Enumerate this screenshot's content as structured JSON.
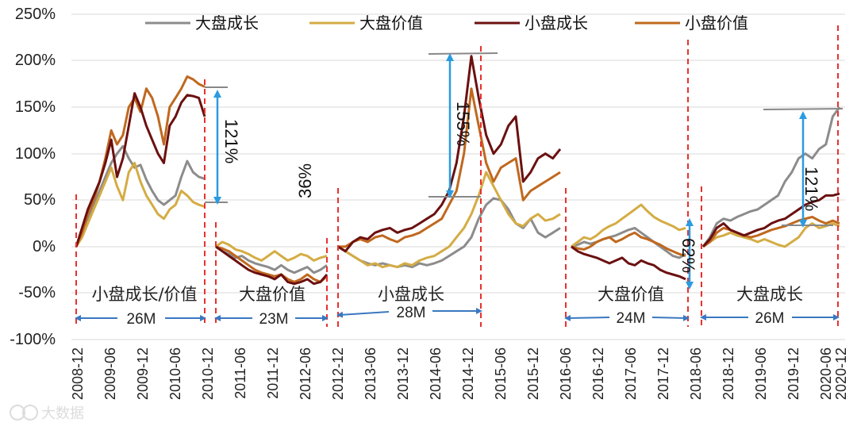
{
  "chart_data": {
    "type": "line",
    "title": "",
    "xlabel": "",
    "ylabel": "",
    "ylim": [
      -100,
      250
    ],
    "yticks": [
      "250%",
      "200%",
      "150%",
      "100%",
      "50%",
      "0%",
      "-50%",
      "-100%"
    ],
    "xticks": [
      "2008-12",
      "2009-06",
      "2009-12",
      "2010-06",
      "2010-12",
      "2011-06",
      "2011-12",
      "2012-06",
      "2012-12",
      "2013-06",
      "2013-12",
      "2014-06",
      "2014-12",
      "2015-06",
      "2015-12",
      "2016-06",
      "2016-12",
      "2017-06",
      "2017-12",
      "2018-06",
      "2018-12",
      "2019-06",
      "2019-12",
      "2020-06",
      "2020-12"
    ],
    "legend_position": "top",
    "series_colors": {
      "large_growth": "#8c8c8c",
      "large_value": "#d4ac44",
      "small_growth": "#6b1010",
      "small_value": "#c0681e"
    },
    "series": [
      {
        "name": "大盘成长",
        "key": "large_growth",
        "segments": [
          [
            0,
            15,
            30,
            45,
            60,
            75,
            90,
            100,
            108,
            95,
            85,
            88,
            72,
            60,
            50,
            45,
            50,
            55,
            75,
            92,
            80,
            75,
            73
          ],
          [
            0,
            -5,
            -8,
            -12,
            -10,
            -15,
            -18,
            -20,
            -22,
            -25,
            -20,
            -25,
            -28,
            -25,
            -22,
            -28,
            -25,
            -20
          ],
          [
            0,
            -5,
            -10,
            -15,
            -18,
            -20,
            -18,
            -20,
            -22,
            -20,
            -22,
            -18,
            -20,
            -18,
            -15,
            -10,
            -5,
            0,
            10,
            30,
            45,
            52,
            50,
            40,
            25,
            20,
            30,
            15,
            10,
            15,
            20
          ],
          [
            0,
            2,
            5,
            3,
            5,
            8,
            10,
            12,
            15,
            18,
            20,
            15,
            10,
            5,
            0,
            -5,
            -10,
            -12,
            -8
          ],
          [
            0,
            10,
            25,
            30,
            28,
            32,
            35,
            38,
            40,
            45,
            50,
            55,
            70,
            80,
            95,
            100,
            95,
            105,
            110,
            140,
            150
          ]
        ]
      },
      {
        "name": "大盘价值",
        "key": "large_value",
        "segments": [
          [
            0,
            10,
            25,
            40,
            55,
            70,
            85,
            65,
            50,
            80,
            90,
            70,
            55,
            45,
            35,
            30,
            40,
            45,
            60,
            55,
            48,
            45,
            43
          ],
          [
            0,
            5,
            2,
            -3,
            -5,
            -8,
            -12,
            -15,
            -10,
            -5,
            -10,
            -15,
            -12,
            -8,
            -10,
            -15,
            -12,
            -10
          ],
          [
            0,
            -5,
            -10,
            -15,
            -20,
            -18,
            -22,
            -20,
            -22,
            -18,
            -20,
            -15,
            -12,
            -10,
            -5,
            0,
            10,
            20,
            35,
            55,
            80,
            65,
            50,
            35,
            25,
            22,
            30,
            35,
            28,
            30,
            35
          ],
          [
            0,
            5,
            10,
            8,
            12,
            18,
            22,
            25,
            30,
            35,
            40,
            45,
            38,
            32,
            28,
            25,
            22,
            18,
            20
          ],
          [
            0,
            5,
            10,
            12,
            15,
            12,
            10,
            8,
            5,
            8,
            5,
            2,
            0,
            5,
            10,
            20,
            25,
            20,
            22,
            25,
            22
          ]
        ]
      },
      {
        "name": "小盘成长",
        "key": "small_growth",
        "segments": [
          [
            0,
            20,
            40,
            55,
            70,
            90,
            115,
            75,
            95,
            130,
            165,
            150,
            130,
            115,
            100,
            90,
            130,
            140,
            155,
            163,
            162,
            160,
            140
          ],
          [
            0,
            -5,
            -10,
            -15,
            -20,
            -25,
            -28,
            -30,
            -32,
            -35,
            -30,
            -38,
            -40,
            -38,
            -35,
            -40,
            -38,
            -30
          ],
          [
            0,
            -5,
            5,
            10,
            8,
            15,
            18,
            20,
            15,
            18,
            20,
            25,
            30,
            35,
            45,
            60,
            90,
            140,
            205,
            160,
            120,
            100,
            110,
            130,
            140,
            70,
            80,
            95,
            100,
            95,
            105
          ],
          [
            0,
            -5,
            -8,
            -10,
            -12,
            -15,
            -18,
            -15,
            -12,
            -18,
            -20,
            -15,
            -18,
            -20,
            -25,
            -28,
            -30,
            -32,
            -35
          ],
          [
            0,
            8,
            20,
            25,
            18,
            15,
            12,
            15,
            18,
            20,
            25,
            28,
            30,
            35,
            40,
            45,
            48,
            50,
            55,
            55,
            57
          ]
        ]
      },
      {
        "name": "小盘价值",
        "key": "small_value",
        "segments": [
          [
            0,
            15,
            35,
            50,
            70,
            95,
            125,
            110,
            120,
            150,
            160,
            145,
            170,
            160,
            140,
            110,
            150,
            160,
            170,
            183,
            180,
            175,
            172
          ],
          [
            0,
            -2,
            -5,
            -10,
            -15,
            -20,
            -25,
            -28,
            -30,
            -32,
            -30,
            -35,
            -38,
            -35,
            -30,
            -35,
            -38,
            -32
          ],
          [
            0,
            0,
            5,
            8,
            5,
            10,
            12,
            8,
            5,
            10,
            12,
            15,
            20,
            25,
            30,
            45,
            60,
            100,
            170,
            130,
            90,
            70,
            85,
            90,
            95,
            50,
            60,
            65,
            70,
            75,
            80
          ],
          [
            0,
            -2,
            -3,
            0,
            5,
            8,
            10,
            5,
            8,
            12,
            15,
            10,
            8,
            5,
            2,
            -2,
            -5,
            -8,
            -10
          ],
          [
            0,
            5,
            15,
            20,
            18,
            15,
            12,
            10,
            12,
            15,
            18,
            20,
            22,
            25,
            28,
            30,
            32,
            28,
            25,
            28,
            25
          ]
        ]
      }
    ],
    "segments": [
      {
        "label": "小盘成长/价值",
        "duration": "26M"
      },
      {
        "label": "大盘价值",
        "duration": "23M"
      },
      {
        "label": "小盘成长",
        "duration": "28M"
      },
      {
        "label": "大盘价值",
        "duration": "24M"
      },
      {
        "label": "大盘成长",
        "duration": "26M"
      }
    ],
    "annotations": [
      "121%",
      "36%",
      "155%",
      "62%",
      "121%"
    ]
  },
  "watermark": "大数据"
}
